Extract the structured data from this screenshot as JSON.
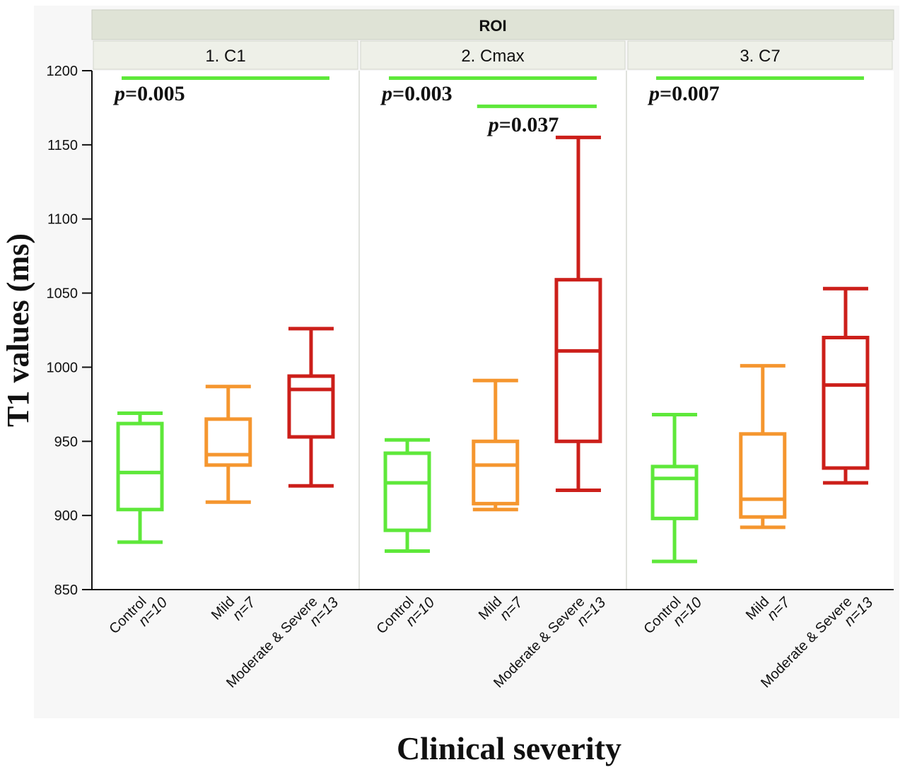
{
  "chart_data": {
    "type": "box",
    "facet_header": "ROI",
    "ylabel": "T1 values (ms)",
    "xlabel": "Clinical severity",
    "ylim": [
      850,
      1200
    ],
    "yticks": [
      850,
      900,
      950,
      1000,
      1050,
      1100,
      1150,
      1200
    ],
    "groups": [
      {
        "label": "Control",
        "n": "n=10",
        "color": "#5ee83a"
      },
      {
        "label": "Mild",
        "n": "n=7",
        "color": "#f5962f"
      },
      {
        "label": "Moderate & Severe",
        "n": "n=13",
        "color": "#cc1f1a"
      }
    ],
    "panels": [
      {
        "title": "1. C1",
        "boxes": [
          {
            "min": 882,
            "q1": 904,
            "median": 929,
            "q3": 962,
            "max": 969,
            "cap_low": 882,
            "cap_high": 969
          },
          {
            "min": 909,
            "q1": 934,
            "median": 941,
            "q3": 965,
            "max": 987
          },
          {
            "min": 920,
            "q1": 953,
            "median": 985,
            "q3": 994,
            "max": 1026
          }
        ],
        "significance": [
          {
            "from": 0,
            "to": 2,
            "y": 1195,
            "p_prefix": "p",
            "p_value": "=0.005",
            "label_y": 1180
          }
        ]
      },
      {
        "title": "2. Cmax",
        "boxes": [
          {
            "min": 876,
            "q1": 890,
            "median": 922,
            "q3": 942,
            "max": 951
          },
          {
            "min": 904,
            "q1": 908,
            "median": 934,
            "q3": 950,
            "max": 991
          },
          {
            "min": 917,
            "q1": 950,
            "median": 1011,
            "q3": 1059,
            "max": 1155
          }
        ],
        "significance": [
          {
            "from": 0,
            "to": 2,
            "y": 1195,
            "p_prefix": "p",
            "p_value": "=0.003",
            "label_y": 1180
          },
          {
            "from": 1,
            "to": 2,
            "y": 1176,
            "p_prefix": "p",
            "p_value": "=0.037",
            "label_y": 1159
          }
        ]
      },
      {
        "title": "3. C7",
        "boxes": [
          {
            "min": 869,
            "q1": 898,
            "median": 925,
            "q3": 933,
            "max": 968
          },
          {
            "min": 892,
            "q1": 899,
            "median": 911,
            "q3": 955,
            "max": 1001
          },
          {
            "min": 922,
            "q1": 932,
            "median": 988,
            "q3": 1020,
            "max": 1053
          }
        ],
        "significance": [
          {
            "from": 0,
            "to": 2,
            "y": 1195,
            "p_prefix": "p",
            "p_value": "=0.007",
            "label_y": 1180
          }
        ]
      }
    ]
  }
}
